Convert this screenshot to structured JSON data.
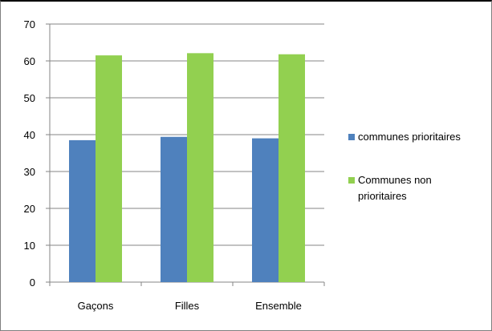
{
  "chart_data": {
    "type": "bar",
    "categories": [
      "Gaçons",
      "Filles",
      "Ensemble"
    ],
    "series": [
      {
        "name": "communes prioritaires",
        "values": [
          38.5,
          39.4,
          39.0
        ],
        "color": "#4f81bd"
      },
      {
        "name": "Communes  non prioritaires",
        "values": [
          61.5,
          62.1,
          61.8
        ],
        "color": "#92d050"
      }
    ],
    "title": "",
    "xlabel": "",
    "ylabel": "",
    "ylim": [
      0,
      70
    ],
    "yticks": [
      "0",
      "10",
      "20",
      "30",
      "40",
      "50",
      "60",
      "70"
    ],
    "grid": true,
    "legend_position": "right"
  }
}
